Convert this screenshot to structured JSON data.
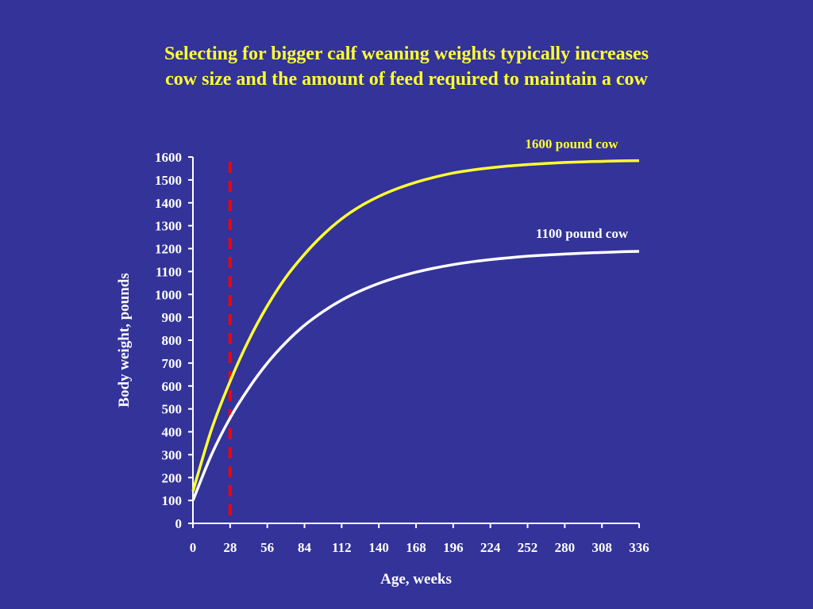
{
  "slide": {
    "title_line1": "Selecting for bigger calf weaning weights typically increases",
    "title_line2": "cow size and the amount of feed required to maintain a cow",
    "background_color": "#333399",
    "title_color": "#ffff33"
  },
  "chart_data": {
    "type": "line",
    "xlabel": "Age, weeks",
    "ylabel": "Body weight, pounds",
    "xlim": [
      0,
      336
    ],
    "ylim": [
      0,
      1600
    ],
    "x_ticks": [
      0,
      28,
      56,
      84,
      112,
      140,
      168,
      196,
      224,
      252,
      280,
      308,
      336
    ],
    "y_ticks": [
      0,
      100,
      200,
      300,
      400,
      500,
      600,
      700,
      800,
      900,
      1000,
      1100,
      1200,
      1300,
      1400,
      1500,
      1600
    ],
    "grid": false,
    "legend": "none",
    "series": [
      {
        "name": "1600 pound cow",
        "color": "#ffff33",
        "x": [
          0,
          14,
          28,
          42,
          56,
          70,
          84,
          98,
          112,
          126,
          140,
          154,
          168,
          182,
          196,
          210,
          224,
          238,
          252,
          266,
          280,
          294,
          308,
          322,
          336
        ],
        "y": [
          140,
          410,
          620,
          800,
          950,
          1075,
          1175,
          1260,
          1330,
          1385,
          1428,
          1462,
          1490,
          1512,
          1530,
          1543,
          1553,
          1561,
          1567,
          1572,
          1576,
          1579,
          1581,
          1583,
          1584
        ]
      },
      {
        "name": "1100 pound cow",
        "color": "#ffffff",
        "x": [
          0,
          14,
          28,
          42,
          56,
          70,
          84,
          98,
          112,
          126,
          140,
          154,
          168,
          182,
          196,
          210,
          224,
          238,
          252,
          266,
          280,
          294,
          308,
          322,
          336
        ],
        "y": [
          100,
          300,
          460,
          590,
          700,
          790,
          865,
          925,
          975,
          1015,
          1048,
          1075,
          1097,
          1115,
          1130,
          1142,
          1152,
          1160,
          1167,
          1172,
          1176,
          1180,
          1183,
          1186,
          1188
        ]
      }
    ],
    "reference_lines": [
      {
        "x": 28,
        "color": "#ff0000",
        "style": "dashed"
      }
    ]
  }
}
